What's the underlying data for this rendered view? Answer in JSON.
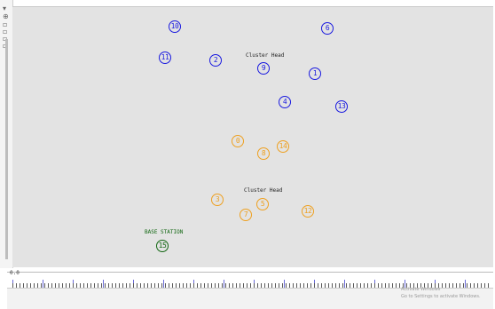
{
  "toolbar": {
    "icons": [
      "pointer-icon",
      "zoom-icon",
      "tool-icon-3",
      "tool-icon-4",
      "tool-icon-5",
      "tool-icon-6"
    ]
  },
  "colors": {
    "blue_cluster": "#1a1ae0",
    "orange_cluster": "#eea020",
    "base_station": "#116611",
    "canvas": "#e3e3e3"
  },
  "labels": {
    "cluster_head_1": "Cluster Head",
    "cluster_head_2": "Cluster Head",
    "base_station": "BASE STATION"
  },
  "nodes": {
    "n10": "10",
    "n6": "6",
    "n11": "11",
    "n2": "2",
    "n9": "9",
    "n1": "1",
    "n4": "4",
    "n13": "13",
    "n0": "0",
    "n14": "14",
    "n8": "8",
    "n3": "3",
    "n5": "5",
    "n7": "7",
    "n12": "12",
    "n15": "15"
  },
  "timeline": {
    "label": "0.0"
  },
  "watermark": {
    "line1": "Activate Windows",
    "line2": "Go to Settings to activate Windows."
  }
}
